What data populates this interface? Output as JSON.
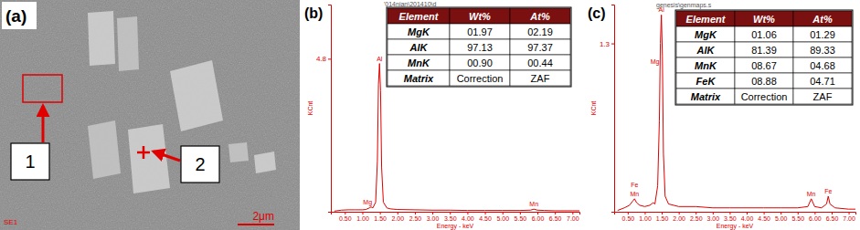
{
  "image_panel": {
    "label": "(a)",
    "callouts": [
      "1",
      "2"
    ],
    "detector": "SE1",
    "scale_bar": "2μm"
  },
  "chart_data": [
    {
      "type": "line",
      "title": "(b)",
      "subtitle": "'014nian\\201410\\d",
      "xlabel": "Energy - keV",
      "ylabel": "KCnt",
      "color": "#e00000",
      "x": [
        0.2,
        0.4,
        0.6,
        0.8,
        1.0,
        1.1,
        1.2,
        1.25,
        1.3,
        1.38,
        1.43,
        1.46,
        1.49,
        1.52,
        1.55,
        1.6,
        1.7,
        1.8,
        2.0,
        2.5,
        3.0,
        3.5,
        4.0,
        4.5,
        5.0,
        5.5,
        5.8,
        5.9,
        6.0,
        6.2,
        6.5,
        7.0,
        7.2
      ],
      "values": [
        0.02,
        0.05,
        0.06,
        0.06,
        0.06,
        0.07,
        0.12,
        0.15,
        0.12,
        0.3,
        1.6,
        4.0,
        4.65,
        3.8,
        1.4,
        0.3,
        0.12,
        0.09,
        0.07,
        0.06,
        0.05,
        0.05,
        0.04,
        0.04,
        0.04,
        0.04,
        0.05,
        0.08,
        0.05,
        0.04,
        0.03,
        0.03,
        0.03
      ],
      "xlim": [
        0.1,
        7.2
      ],
      "xticks": [
        {
          "value": 0.5,
          "label": "0.50"
        },
        {
          "value": 1.0,
          "label": "1.00"
        },
        {
          "value": 1.5,
          "label": "1.50"
        },
        {
          "value": 2.0,
          "label": "2.00"
        },
        {
          "value": 2.5,
          "label": "2.50"
        },
        {
          "value": 3.0,
          "label": "3.00"
        },
        {
          "value": 3.5,
          "label": "3.50"
        },
        {
          "value": 4.0,
          "label": "4.00"
        },
        {
          "value": 4.5,
          "label": "4.50"
        },
        {
          "value": 5.0,
          "label": "5.00"
        },
        {
          "value": 5.5,
          "label": "5.50"
        },
        {
          "value": 6.0,
          "label": "6.00"
        },
        {
          "value": 6.5,
          "label": "6.50"
        },
        {
          "value": 7.0,
          "label": "7.00"
        }
      ],
      "ylim": [
        0,
        6.5
      ],
      "yticks": [
        4.8
      ],
      "annotations": [
        {
          "text": "Al",
          "x": 1.49,
          "y": 4.65
        },
        {
          "text": "Mg",
          "x": 1.15,
          "y": 0.15
        },
        {
          "text": "Mn",
          "x": 5.9,
          "y": 0.08
        }
      ],
      "table": {
        "header": [
          "Element",
          "Wt%",
          "At%"
        ],
        "rows": [
          [
            "MgK",
            "01.97",
            "02.19"
          ],
          [
            "AlK",
            "97.13",
            "97.37"
          ],
          [
            "MnK",
            "00.90",
            "00.44"
          ],
          [
            "Matrix",
            "Correction",
            "ZAF"
          ]
        ]
      }
    },
    {
      "type": "line",
      "title": "(c)",
      "subtitle": "genesis\\genmaps.s",
      "xlabel": "Energy - keV",
      "ylabel": "KCnt",
      "color": "#e00000",
      "x": [
        0.2,
        0.4,
        0.55,
        0.64,
        0.7,
        0.76,
        0.85,
        1.0,
        1.15,
        1.25,
        1.3,
        1.38,
        1.43,
        1.46,
        1.49,
        1.52,
        1.55,
        1.6,
        1.7,
        2.0,
        2.5,
        3.0,
        3.5,
        4.0,
        4.5,
        5.0,
        5.5,
        5.8,
        5.9,
        6.0,
        6.2,
        6.35,
        6.4,
        6.45,
        6.6,
        7.0,
        7.2
      ],
      "values": [
        0.01,
        0.03,
        0.05,
        0.08,
        0.1,
        0.07,
        0.05,
        0.04,
        0.05,
        0.07,
        0.06,
        0.2,
        0.7,
        1.3,
        1.52,
        1.2,
        0.45,
        0.12,
        0.06,
        0.04,
        0.04,
        0.03,
        0.03,
        0.03,
        0.03,
        0.03,
        0.03,
        0.04,
        0.1,
        0.04,
        0.03,
        0.06,
        0.12,
        0.06,
        0.03,
        0.02,
        0.02
      ],
      "xlim": [
        0.1,
        7.2
      ],
      "xticks": [
        {
          "value": 0.5,
          "label": "0.50"
        },
        {
          "value": 1.0,
          "label": "1.00"
        },
        {
          "value": 1.5,
          "label": "1.50"
        },
        {
          "value": 2.0,
          "label": "2.00"
        },
        {
          "value": 2.5,
          "label": "2.50"
        },
        {
          "value": 3.0,
          "label": "3.00"
        },
        {
          "value": 3.5,
          "label": "3.50"
        },
        {
          "value": 4.0,
          "label": "4.00"
        },
        {
          "value": 4.5,
          "label": "4.50"
        },
        {
          "value": 5.0,
          "label": "5.00"
        },
        {
          "value": 5.5,
          "label": "5.50"
        },
        {
          "value": 6.0,
          "label": "6.00"
        },
        {
          "value": 6.5,
          "label": "6.50"
        },
        {
          "value": 7.0,
          "label": "7.00"
        }
      ],
      "ylim": [
        0,
        1.6
      ],
      "yticks": [
        1.3
      ],
      "annotations": [
        {
          "text": "Al",
          "x": 1.49,
          "y": 1.52
        },
        {
          "text": "Mg",
          "x": 1.3,
          "y": 1.12
        },
        {
          "text": "Fe",
          "x": 0.7,
          "y": 0.17
        },
        {
          "text": "Mn",
          "x": 0.7,
          "y": 0.1
        },
        {
          "text": "Mn",
          "x": 5.9,
          "y": 0.1
        },
        {
          "text": "Fe",
          "x": 6.4,
          "y": 0.12
        }
      ],
      "table": {
        "header": [
          "Element",
          "Wt%",
          "At%"
        ],
        "rows": [
          [
            "MgK",
            "01.06",
            "01.29"
          ],
          [
            "AlK",
            "81.39",
            "89.33"
          ],
          [
            "MnK",
            "08.67",
            "04.68"
          ],
          [
            "FeK",
            "08.88",
            "04.71"
          ],
          [
            "Matrix",
            "Correction",
            "ZAF"
          ]
        ]
      }
    }
  ]
}
